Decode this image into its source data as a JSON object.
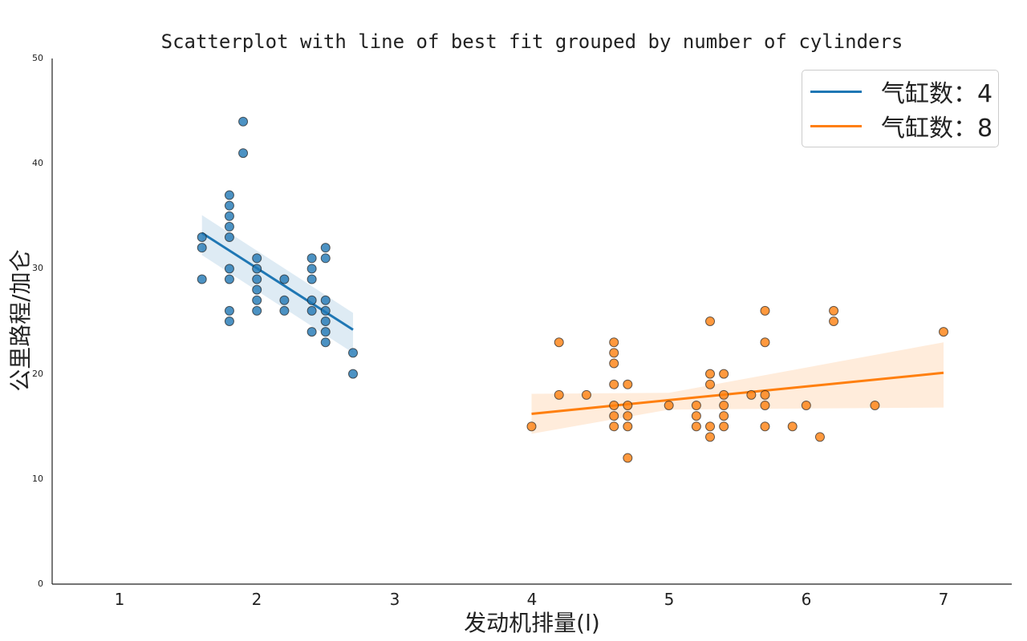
{
  "chart_data": {
    "type": "scatter",
    "title": "Scatterplot with line of best fit grouped by number of cylinders",
    "xlabel": "发动机排量(l)",
    "ylabel": "公里路程/加仑",
    "xlim": [
      0.5,
      7.5
    ],
    "ylim": [
      0,
      50
    ],
    "xticks": [
      1,
      2,
      3,
      4,
      5,
      6,
      7
    ],
    "yticks": [
      0,
      10,
      20,
      30,
      40,
      50
    ],
    "grid": false,
    "legend_position": "upper right",
    "series": [
      {
        "name": "气缸数：4",
        "color": "#1f77b4",
        "points": [
          [
            1.6,
            33
          ],
          [
            1.6,
            32
          ],
          [
            1.6,
            29
          ],
          [
            1.8,
            37
          ],
          [
            1.8,
            36
          ],
          [
            1.8,
            35
          ],
          [
            1.8,
            34
          ],
          [
            1.8,
            33
          ],
          [
            1.8,
            30
          ],
          [
            1.8,
            29
          ],
          [
            1.8,
            26
          ],
          [
            1.8,
            25
          ],
          [
            1.9,
            44
          ],
          [
            1.9,
            41
          ],
          [
            2.0,
            31
          ],
          [
            2.0,
            30
          ],
          [
            2.0,
            29
          ],
          [
            2.0,
            28
          ],
          [
            2.0,
            27
          ],
          [
            2.0,
            26
          ],
          [
            2.2,
            29
          ],
          [
            2.2,
            27
          ],
          [
            2.2,
            26
          ],
          [
            2.4,
            31
          ],
          [
            2.4,
            30
          ],
          [
            2.4,
            29
          ],
          [
            2.4,
            27
          ],
          [
            2.4,
            26
          ],
          [
            2.4,
            24
          ],
          [
            2.5,
            32
          ],
          [
            2.5,
            31
          ],
          [
            2.5,
            27
          ],
          [
            2.5,
            26
          ],
          [
            2.5,
            25
          ],
          [
            2.5,
            24
          ],
          [
            2.5,
            23
          ],
          [
            2.7,
            22
          ],
          [
            2.7,
            20
          ]
        ],
        "fit_line": {
          "x": [
            1.6,
            2.7
          ],
          "y": [
            33.4,
            24.2
          ]
        },
        "ci_band": {
          "x": [
            1.6,
            2.7
          ],
          "upper": [
            35.1,
            25.8
          ],
          "lower": [
            31.3,
            22.0
          ]
        }
      },
      {
        "name": "气缸数：8",
        "color": "#ff7f0e",
        "points": [
          [
            4.0,
            15
          ],
          [
            4.2,
            23
          ],
          [
            4.2,
            18
          ],
          [
            4.4,
            18
          ],
          [
            4.6,
            23
          ],
          [
            4.6,
            22
          ],
          [
            4.6,
            21
          ],
          [
            4.6,
            19
          ],
          [
            4.6,
            17
          ],
          [
            4.6,
            16
          ],
          [
            4.6,
            15
          ],
          [
            4.7,
            19
          ],
          [
            4.7,
            17
          ],
          [
            4.7,
            16
          ],
          [
            4.7,
            15
          ],
          [
            4.7,
            12
          ],
          [
            5.0,
            17
          ],
          [
            5.2,
            17
          ],
          [
            5.2,
            16
          ],
          [
            5.2,
            15
          ],
          [
            5.3,
            25
          ],
          [
            5.3,
            20
          ],
          [
            5.3,
            19
          ],
          [
            5.3,
            15
          ],
          [
            5.3,
            14
          ],
          [
            5.4,
            20
          ],
          [
            5.4,
            18
          ],
          [
            5.4,
            17
          ],
          [
            5.4,
            16
          ],
          [
            5.4,
            15
          ],
          [
            5.6,
            18
          ],
          [
            5.7,
            26
          ],
          [
            5.7,
            23
          ],
          [
            5.7,
            18
          ],
          [
            5.7,
            17
          ],
          [
            5.7,
            15
          ],
          [
            5.9,
            15
          ],
          [
            6.0,
            17
          ],
          [
            6.1,
            14
          ],
          [
            6.2,
            26
          ],
          [
            6.2,
            25
          ],
          [
            6.5,
            17
          ],
          [
            7.0,
            24
          ]
        ],
        "fit_line": {
          "x": [
            4.0,
            7.0
          ],
          "y": [
            16.2,
            20.1
          ]
        },
        "ci_band": {
          "x": [
            4.0,
            5.0,
            7.0
          ],
          "upper": [
            18.1,
            18.2,
            23.0
          ],
          "lower": [
            14.3,
            16.6,
            16.8
          ]
        }
      }
    ]
  },
  "legend": {
    "items": [
      {
        "label": "气缸数：4",
        "color": "#1f77b4"
      },
      {
        "label": "气缸数：8",
        "color": "#ff7f0e"
      }
    ]
  },
  "axes": {
    "x_tick_labels": [
      "1",
      "2",
      "3",
      "4",
      "5",
      "6",
      "7"
    ],
    "y_tick_labels": [
      "0",
      "10",
      "20",
      "30",
      "40",
      "50"
    ]
  }
}
